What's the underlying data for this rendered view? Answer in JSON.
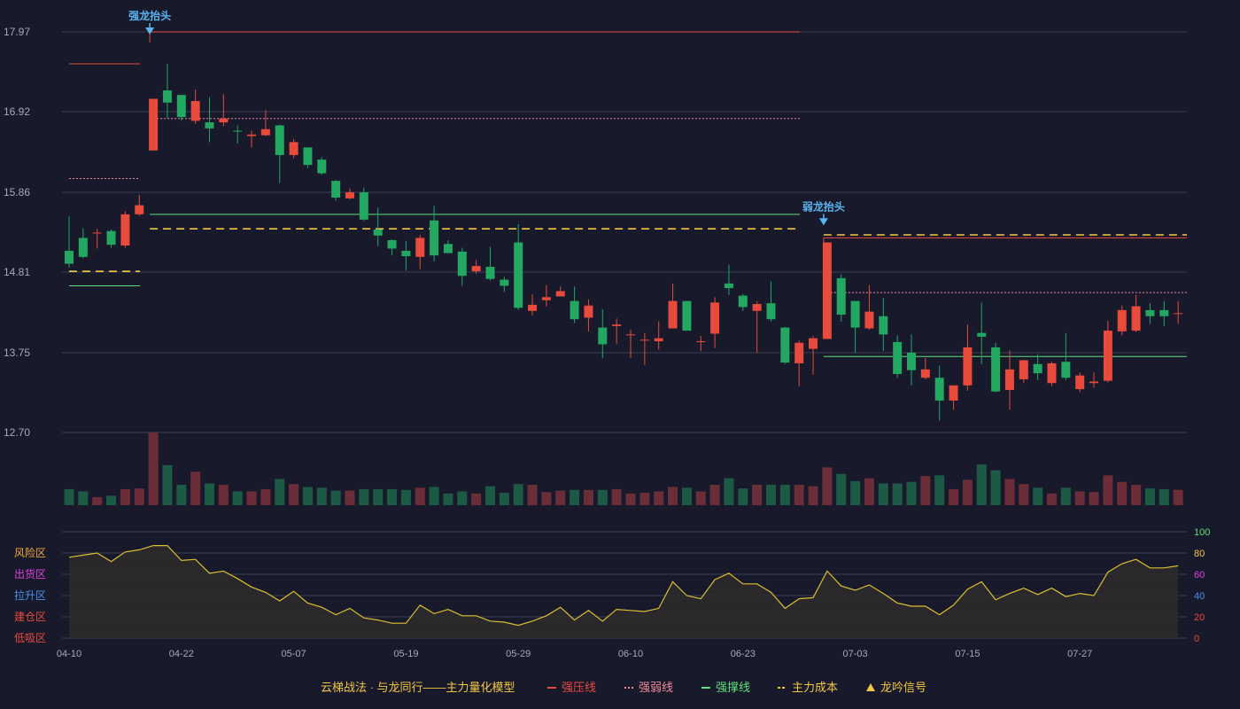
{
  "chart_data": {
    "type": "candlestick",
    "colors": {
      "background": "#181a2c",
      "up": "#e84a3c",
      "down": "#22a860",
      "up_volume": "#6b2d37",
      "down_volume": "#1d5a45",
      "grid": "#3a3d52",
      "axis_text": "#a6a9b8",
      "strong_pressure": "#e84a3c",
      "strong_weak": "#f08a9a",
      "strong_support": "#5ce07a",
      "main_cost": "#f2c744",
      "signal": "#5ab4f0",
      "osc_line": "#d9c030",
      "osc_fill": "#2e2b2c"
    },
    "price_axis": {
      "ticks": [
        "17.97",
        "16.92",
        "15.86",
        "14.81",
        "13.75",
        "12.70"
      ],
      "range": [
        12.7,
        17.97
      ]
    },
    "x_axis": {
      "ticks": [
        {
          "label": "04-10",
          "index": 0
        },
        {
          "label": "04-22",
          "index": 8
        },
        {
          "label": "05-07",
          "index": 16
        },
        {
          "label": "05-19",
          "index": 24
        },
        {
          "label": "05-29",
          "index": 32
        },
        {
          "label": "06-10",
          "index": 40
        },
        {
          "label": "06-23",
          "index": 48
        },
        {
          "label": "07-03",
          "index": 56
        },
        {
          "label": "07-15",
          "index": 64
        },
        {
          "label": "07-27",
          "index": 72
        }
      ]
    },
    "candles": [
      [
        15.09,
        14.92,
        15.54,
        14.87
      ],
      [
        15.26,
        15.01,
        15.39,
        14.99
      ],
      [
        15.33,
        15.33,
        15.38,
        15.12
      ],
      [
        15.35,
        15.17,
        15.37,
        15.13
      ],
      [
        15.16,
        15.57,
        15.61,
        15.13
      ],
      [
        15.57,
        15.69,
        15.83,
        15.55
      ],
      [
        16.41,
        17.09,
        17.09,
        16.41
      ],
      [
        17.2,
        17.04,
        17.55,
        16.84
      ],
      [
        17.14,
        16.85,
        17.14,
        16.8
      ],
      [
        16.8,
        17.06,
        17.21,
        16.76
      ],
      [
        16.78,
        16.7,
        17.11,
        16.52
      ],
      [
        16.78,
        16.83,
        17.15,
        16.73
      ],
      [
        16.67,
        16.66,
        16.74,
        16.5
      ],
      [
        16.6,
        16.62,
        16.67,
        16.45
      ],
      [
        16.61,
        16.69,
        16.94,
        16.6
      ],
      [
        16.74,
        16.35,
        16.75,
        15.98
      ],
      [
        16.35,
        16.52,
        16.56,
        16.31
      ],
      [
        16.45,
        16.22,
        16.45,
        16.18
      ],
      [
        16.29,
        16.11,
        16.32,
        16.09
      ],
      [
        16.01,
        15.79,
        16.02,
        15.75
      ],
      [
        15.78,
        15.86,
        15.91,
        15.77
      ],
      [
        15.86,
        15.5,
        15.92,
        15.48
      ],
      [
        15.37,
        15.29,
        15.66,
        15.15
      ],
      [
        15.23,
        15.12,
        15.24,
        15.03
      ],
      [
        15.09,
        15.02,
        15.22,
        14.83
      ],
      [
        15.01,
        15.26,
        15.3,
        14.85
      ],
      [
        15.49,
        15.03,
        15.68,
        14.95
      ],
      [
        15.18,
        15.06,
        15.23,
        15.06
      ],
      [
        15.08,
        14.76,
        15.13,
        14.63
      ],
      [
        14.82,
        14.89,
        14.97,
        14.79
      ],
      [
        14.88,
        14.72,
        15.14,
        14.7
      ],
      [
        14.71,
        14.63,
        14.75,
        14.55
      ],
      [
        15.2,
        14.34,
        15.44,
        14.31
      ],
      [
        14.3,
        14.38,
        14.52,
        14.24
      ],
      [
        14.44,
        14.48,
        14.64,
        14.36
      ],
      [
        14.49,
        14.56,
        14.62,
        14.5
      ],
      [
        14.43,
        14.19,
        14.62,
        14.14
      ],
      [
        14.21,
        14.37,
        14.45,
        14.03
      ],
      [
        14.08,
        13.86,
        14.32,
        13.68
      ],
      [
        14.1,
        14.12,
        14.2,
        13.86
      ],
      [
        13.99,
        13.99,
        14.05,
        13.68
      ],
      [
        13.91,
        13.92,
        14.01,
        13.59
      ],
      [
        13.9,
        13.94,
        14.16,
        13.79
      ],
      [
        14.07,
        14.43,
        14.66,
        14.07
      ],
      [
        14.43,
        14.04,
        14.43,
        14.04
      ],
      [
        13.89,
        13.9,
        13.97,
        13.77
      ],
      [
        14.0,
        14.41,
        14.48,
        13.81
      ],
      [
        14.66,
        14.6,
        14.91,
        14.51
      ],
      [
        14.5,
        14.35,
        14.52,
        14.3
      ],
      [
        14.3,
        14.39,
        14.43,
        13.75
      ],
      [
        14.4,
        14.19,
        14.69,
        14.16
      ],
      [
        14.08,
        13.62,
        14.09,
        13.6
      ],
      [
        13.61,
        13.88,
        13.91,
        13.31
      ],
      [
        13.8,
        13.94,
        13.97,
        13.46
      ],
      [
        13.93,
        15.2,
        15.2,
        13.93
      ],
      [
        14.73,
        14.25,
        14.78,
        14.16
      ],
      [
        14.43,
        14.08,
        14.43,
        13.75
      ],
      [
        14.07,
        14.29,
        14.64,
        14.05
      ],
      [
        14.23,
        13.99,
        14.47,
        13.77
      ],
      [
        13.89,
        13.47,
        13.98,
        13.42
      ],
      [
        13.75,
        13.52,
        13.99,
        13.32
      ],
      [
        13.42,
        13.53,
        13.68,
        13.4
      ],
      [
        13.42,
        13.12,
        13.58,
        12.86
      ],
      [
        13.12,
        13.32,
        13.31,
        13.0
      ],
      [
        13.32,
        13.82,
        14.12,
        13.25
      ],
      [
        14.01,
        13.96,
        14.41,
        13.6
      ],
      [
        13.82,
        13.24,
        13.88,
        13.23
      ],
      [
        13.26,
        13.53,
        13.78,
        13.0
      ],
      [
        13.4,
        13.65,
        13.66,
        13.35
      ],
      [
        13.6,
        13.48,
        13.73,
        13.39
      ],
      [
        13.35,
        13.61,
        13.63,
        13.31
      ],
      [
        13.63,
        13.42,
        14.01,
        13.39
      ],
      [
        13.27,
        13.45,
        13.49,
        13.23
      ],
      [
        13.35,
        13.37,
        13.49,
        13.29
      ],
      [
        13.38,
        14.04,
        14.17,
        13.36
      ],
      [
        14.03,
        14.31,
        14.37,
        13.98
      ],
      [
        14.04,
        14.36,
        14.51,
        14.02
      ],
      [
        14.31,
        14.23,
        14.4,
        14.13
      ],
      [
        14.31,
        14.23,
        14.43,
        14.1
      ],
      [
        14.27,
        14.27,
        14.43,
        14.13
      ]
    ],
    "volumes": [
      22,
      19,
      11,
      13,
      22,
      23,
      100,
      55,
      28,
      46,
      30,
      28,
      19,
      19,
      22,
      36,
      29,
      25,
      24,
      20,
      20,
      22,
      22,
      22,
      21,
      24,
      25,
      16,
      19,
      16,
      26,
      17,
      29,
      28,
      18,
      20,
      21,
      21,
      21,
      22,
      16,
      17,
      19,
      25,
      24,
      19,
      28,
      37,
      23,
      28,
      28,
      28,
      28,
      26,
      52,
      43,
      33,
      37,
      30,
      30,
      32,
      40,
      41,
      22,
      35,
      56,
      48,
      36,
      29,
      24,
      16,
      24,
      19,
      18,
      41,
      32,
      28,
      23,
      22,
      21
    ],
    "levels": [
      {
        "name": "强压线",
        "segments": [
          [
            0,
            6,
            17.55
          ],
          [
            6,
            53,
            17.97
          ],
          [
            54,
            79,
            15.26
          ]
        ]
      },
      {
        "name": "强弱线",
        "segments": [
          [
            0,
            6,
            16.04
          ],
          [
            6,
            53,
            16.83
          ],
          [
            54,
            79,
            14.54
          ]
        ]
      },
      {
        "name": "强撑线",
        "segments": [
          [
            0,
            6,
            14.63
          ],
          [
            6,
            53,
            15.57
          ],
          [
            54,
            79,
            13.7
          ]
        ]
      },
      {
        "name": "主力成本",
        "segments": [
          [
            0,
            6,
            14.82
          ],
          [
            6,
            53,
            15.38
          ],
          [
            54,
            79,
            15.3
          ]
        ]
      }
    ],
    "signals": [
      {
        "label": "强龙抬头",
        "index": 6,
        "price": 17.97
      },
      {
        "label": "弱龙抬头",
        "index": 54,
        "price": 15.46
      }
    ],
    "oscillator": {
      "right_ticks": [
        "100",
        "80",
        "60",
        "40",
        "20",
        "0"
      ],
      "zones": [
        {
          "label": "风险区",
          "color": "#f2a43c",
          "value": 80
        },
        {
          "label": "出货区",
          "color": "#e040e0",
          "value": 60
        },
        {
          "label": "拉升区",
          "color": "#4a90e8",
          "value": 40
        },
        {
          "label": "建仓区",
          "color": "#e84a3c",
          "value": 20
        },
        {
          "label": "低吸区",
          "color": "#e84a3c",
          "value": 0
        }
      ],
      "values": [
        76,
        78,
        80,
        72,
        81,
        83,
        87,
        87,
        73,
        74,
        61,
        63,
        56,
        48,
        43,
        35,
        44,
        33,
        29,
        22,
        28,
        19,
        17,
        14,
        14,
        31,
        23,
        27,
        21,
        21,
        16,
        15,
        12,
        16,
        21,
        29,
        17,
        26,
        16,
        27,
        26,
        25,
        28,
        53,
        40,
        37,
        55,
        61,
        51,
        51,
        43,
        28,
        37,
        38,
        63,
        49,
        45,
        50,
        42,
        33,
        30,
        30,
        22,
        31,
        46,
        53,
        36,
        42,
        47,
        41,
        47,
        39,
        42,
        40,
        62,
        70,
        74,
        66,
        66,
        68
      ],
      "range": [
        0,
        100
      ]
    },
    "legend": {
      "title": "云梯战法 · 与龙同行——主力量化模型",
      "items": [
        {
          "label": "强压线",
          "color": "#e84a3c",
          "style": "solid"
        },
        {
          "label": "强弱线",
          "color": "#f08a9a",
          "style": "dotted"
        },
        {
          "label": "强撑线",
          "color": "#5ce07a",
          "style": "solid"
        },
        {
          "label": "主力成本",
          "color": "#f2c744",
          "style": "dashed"
        },
        {
          "label": "龙吟信号",
          "color": "#f2c744",
          "style": "triangle"
        }
      ]
    }
  }
}
